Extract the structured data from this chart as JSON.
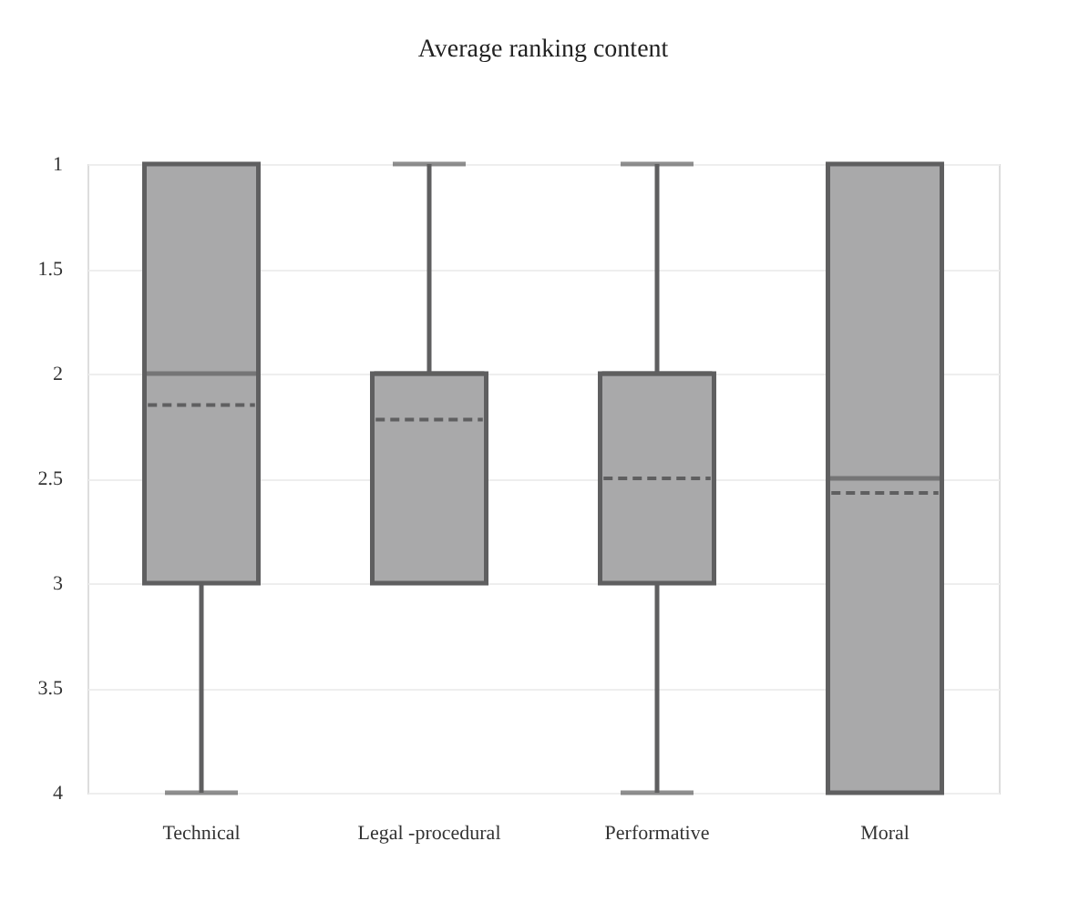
{
  "chart_data": {
    "type": "box",
    "title": "Average ranking content",
    "categories": [
      "Technical",
      "Legal -procedural",
      "Performative",
      "Moral"
    ],
    "boxes": [
      {
        "low": 1,
        "q1": 1,
        "median": 2,
        "q3": 3,
        "high": 4,
        "mean": 2.15
      },
      {
        "low": 1,
        "q1": 2,
        "median": 2,
        "q3": 3,
        "high": 3,
        "mean": 2.22
      },
      {
        "low": 1,
        "q1": 2,
        "median": 2,
        "q3": 3,
        "high": 4,
        "mean": 2.5
      },
      {
        "low": 1,
        "q1": 1,
        "median": 2.5,
        "q3": 4,
        "high": 4,
        "mean": 2.57
      }
    ],
    "color": "#a9a9aa",
    "ylim": [
      4,
      1
    ],
    "yticks": [
      1,
      1.5,
      2,
      2.5,
      3,
      3.5,
      4
    ],
    "grid": "y"
  }
}
